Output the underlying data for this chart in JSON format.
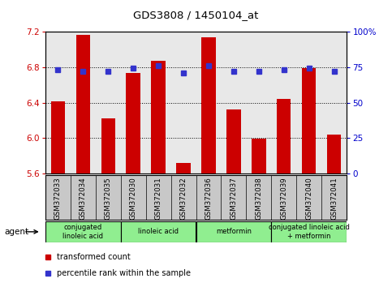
{
  "title": "GDS3808 / 1450104_at",
  "samples": [
    "GSM372033",
    "GSM372034",
    "GSM372035",
    "GSM372030",
    "GSM372031",
    "GSM372032",
    "GSM372036",
    "GSM372037",
    "GSM372038",
    "GSM372039",
    "GSM372040",
    "GSM372041"
  ],
  "bar_values": [
    6.41,
    7.16,
    6.22,
    6.73,
    6.87,
    5.72,
    7.14,
    6.32,
    5.99,
    6.44,
    6.79,
    6.04
  ],
  "percentile_values": [
    73,
    72,
    72,
    74,
    76,
    71,
    76,
    72,
    72,
    73,
    74,
    72
  ],
  "ymin": 5.6,
  "ymax": 7.2,
  "yticks": [
    5.6,
    6.0,
    6.4,
    6.8,
    7.2
  ],
  "right_yticks": [
    0,
    25,
    50,
    75,
    100
  ],
  "bar_color": "#CC0000",
  "square_color": "#3333CC",
  "bar_width": 0.55,
  "agent_groups": [
    {
      "label": "conjugated\nlinoleic acid",
      "start": 0,
      "end": 3,
      "color": "#90EE90"
    },
    {
      "label": "linoleic acid",
      "start": 3,
      "end": 6,
      "color": "#90EE90"
    },
    {
      "label": "metformin",
      "start": 6,
      "end": 9,
      "color": "#90EE90"
    },
    {
      "label": "conjugated linoleic acid\n+ metformin",
      "start": 9,
      "end": 12,
      "color": "#90EE90"
    }
  ],
  "left_axis_color": "#CC0000",
  "right_axis_color": "#0000CC",
  "bg_color": "#FFFFFF",
  "plot_bg_color": "#E8E8E8",
  "label_bg_color": "#C8C8C8",
  "legend_items": [
    {
      "label": "transformed count",
      "color": "#CC0000"
    },
    {
      "label": "percentile rank within the sample",
      "color": "#3333CC"
    }
  ]
}
